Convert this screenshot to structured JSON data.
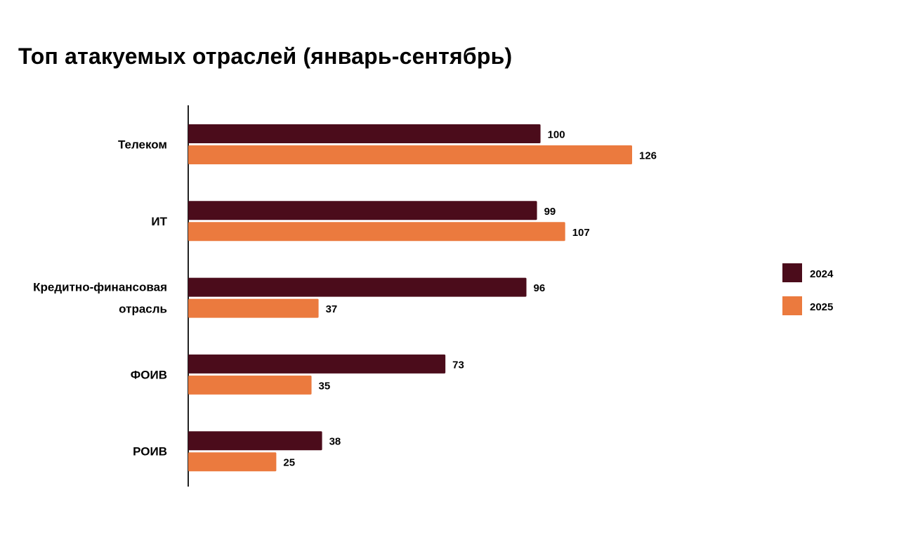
{
  "chart_data": {
    "type": "bar",
    "orientation": "horizontal",
    "title": "Топ атакуемых отраслей (январь-сентябрь)",
    "categories": [
      "Телеком",
      "ИТ",
      "Кредитно-финансовая отрасль",
      "ФОИВ",
      "РОИВ"
    ],
    "category_label_lines": [
      [
        "Телеком"
      ],
      [
        "ИТ"
      ],
      [
        "Кредитно-финансовая",
        "отрасль"
      ],
      [
        "ФОИВ"
      ],
      [
        "РОИВ"
      ]
    ],
    "series": [
      {
        "name": "2024",
        "color": "#4b0c1b",
        "values": [
          100,
          99,
          96,
          73,
          38
        ]
      },
      {
        "name": "2025",
        "color": "#eb7a3e",
        "values": [
          126,
          107,
          37,
          35,
          25
        ]
      }
    ],
    "xlim": [
      0,
      150
    ],
    "grid": false,
    "axis_labels_visible": false,
    "data_labels": true,
    "legend_position": "right"
  }
}
